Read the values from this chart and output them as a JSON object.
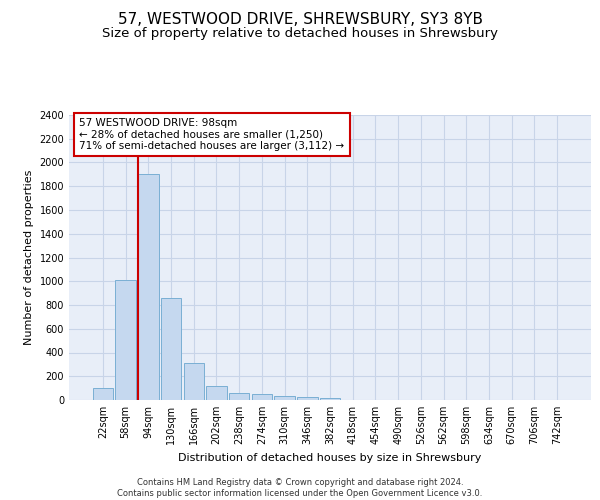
{
  "title_line1": "57, WESTWOOD DRIVE, SHREWSBURY, SY3 8YB",
  "title_line2": "Size of property relative to detached houses in Shrewsbury",
  "xlabel": "Distribution of detached houses by size in Shrewsbury",
  "ylabel": "Number of detached properties",
  "footnote": "Contains HM Land Registry data © Crown copyright and database right 2024.\nContains public sector information licensed under the Open Government Licence v3.0.",
  "bin_labels": [
    "22sqm",
    "58sqm",
    "94sqm",
    "130sqm",
    "166sqm",
    "202sqm",
    "238sqm",
    "274sqm",
    "310sqm",
    "346sqm",
    "382sqm",
    "418sqm",
    "454sqm",
    "490sqm",
    "526sqm",
    "562sqm",
    "598sqm",
    "634sqm",
    "670sqm",
    "706sqm",
    "742sqm"
  ],
  "bar_values": [
    100,
    1010,
    1900,
    860,
    315,
    120,
    60,
    50,
    30,
    22,
    18,
    0,
    0,
    0,
    0,
    0,
    0,
    0,
    0,
    0,
    0
  ],
  "bar_color": "#c5d8ef",
  "bar_edge_color": "#7aafd4",
  "property_line_bin": 2,
  "annotation_title": "57 WESTWOOD DRIVE: 98sqm",
  "annotation_line2": "← 28% of detached houses are smaller (1,250)",
  "annotation_line3": "71% of semi-detached houses are larger (3,112) →",
  "annotation_box_color": "#ffffff",
  "annotation_box_edge_color": "#cc0000",
  "vline_color": "#cc0000",
  "ylim": [
    0,
    2400
  ],
  "yticks": [
    0,
    200,
    400,
    600,
    800,
    1000,
    1200,
    1400,
    1600,
    1800,
    2000,
    2200,
    2400
  ],
  "grid_color": "#c8d4e8",
  "background_color": "#e8eef8",
  "title_fontsize": 11,
  "subtitle_fontsize": 9.5,
  "footnote_fontsize": 6,
  "axis_fontsize": 8,
  "tick_fontsize": 7,
  "annotation_fontsize": 7.5
}
